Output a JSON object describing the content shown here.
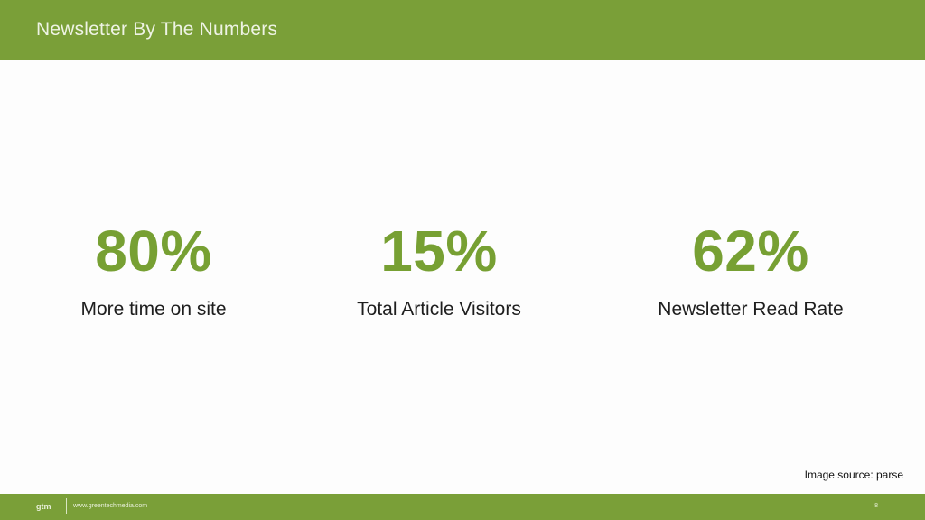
{
  "header": {
    "title": "Newsletter By The Numbers"
  },
  "stats": [
    {
      "value": "80%",
      "label": "More time on site"
    },
    {
      "value": "15%",
      "label": "Total Article Visitors"
    },
    {
      "value": "62%",
      "label": "Newsletter Read Rate"
    }
  ],
  "image_source": "Image source: parse",
  "footer": {
    "logo_text": "gtm",
    "url": "www.greentechmedia.com",
    "page_number": "8"
  },
  "colors": {
    "brand_green": "#7a9f38",
    "stat_green": "#77a033"
  }
}
